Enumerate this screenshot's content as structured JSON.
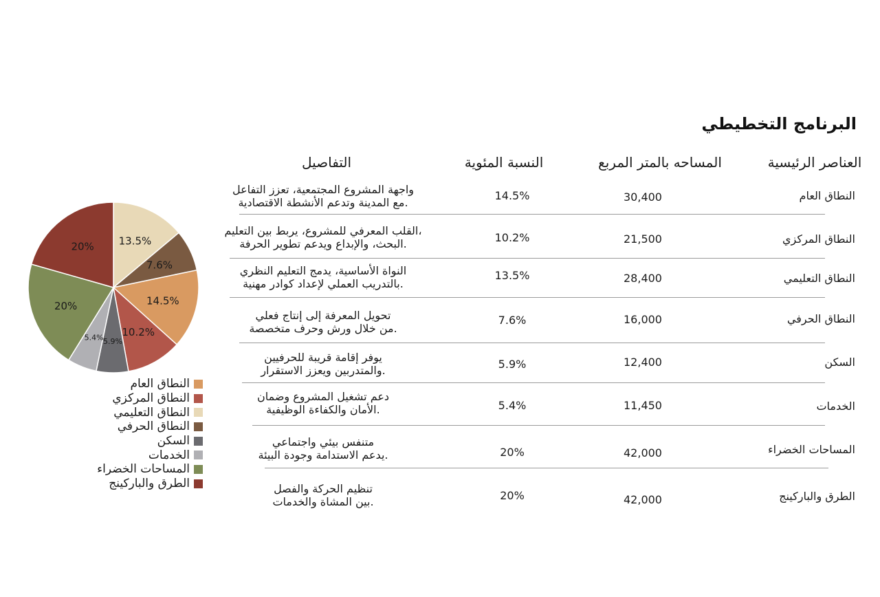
{
  "title": "البرنامج التخطيطي",
  "columns": {
    "elements": "العناصر الرئيسية",
    "area": "المساحه بالمتر المربع",
    "percent": "النسبة المئوية",
    "details": "التفاصيل"
  },
  "rows": [
    {
      "element": "النطاق العام",
      "area": "30,400",
      "percent": "14.5%",
      "detail1": "واجهة المشروع المجتمعية، تعزز التفاعل",
      "detail2": ".مع المدينة وتدعم الأنشطة الاقتصادية"
    },
    {
      "element": "النطاق المركزي",
      "area": "21,500",
      "percent": "10.2%",
      "detail1": "،القلب المعرفي للمشروع، يربط بين التعليم",
      "detail2": ".البحث، والإبداع ويدعم تطوير الحرفة"
    },
    {
      "element": "النطاق التعليمي",
      "area": "28,400",
      "percent": "13.5%",
      "detail1": "النواة الأساسية، يدمج التعليم النظري",
      "detail2": ".بالتدريب العملي لإعداد كوادر مهنية"
    },
    {
      "element": "النطاق الحرفي",
      "area": "16,000",
      "percent": "7.6%",
      "detail1": "تحويل المعرفة إلى إنتاج فعلي",
      "detail2": ".من خلال ورش وحرف متخصصة"
    },
    {
      "element": "السكن",
      "area": "12,400",
      "percent": "5.9%",
      "detail1": "يوفر إقامة قريبة للحرفيين",
      "detail2": ".والمتدربين ويعزز الاستقرار"
    },
    {
      "element": "الخدمات",
      "area": "11,450",
      "percent": "5.4%",
      "detail1": "دعم تشغيل المشروع وضمان",
      "detail2": ".الأمان والكفاءة الوظيفية"
    },
    {
      "element": "المساحات الخضراء",
      "area": "42,000",
      "percent": "20%",
      "detail1": "متنفس بيئي واجتماعي",
      "detail2": ".يدعم الاستدامة وجودة البيئة"
    },
    {
      "element": "الطرق والباركينج",
      "area": "42,000",
      "percent": "20%",
      "detail1": "تنظيم الحركة والفصل",
      "detail2": ".بين المشاة والخدمات"
    }
  ],
  "chart_data": {
    "type": "pie",
    "title": "",
    "legend_position": "bottom",
    "slices": [
      {
        "label": "النطاق التعليمي",
        "value": 13.5,
        "display": "13.5%",
        "color": "#e8d9b7"
      },
      {
        "label": "النطاق الحرفي",
        "value": 7.6,
        "display": "7.6%",
        "color": "#7a5a41"
      },
      {
        "label": "النطاق العام",
        "value": 14.5,
        "display": "14.5%",
        "color": "#d99a61"
      },
      {
        "label": "النطاق المركزي",
        "value": 10.2,
        "display": "10.2%",
        "color": "#b2564a"
      },
      {
        "label": "السكن",
        "value": 5.9,
        "display": "5.9%",
        "color": "#6b6b6f"
      },
      {
        "label": "الخدمات",
        "value": 5.4,
        "display": "5.4%",
        "color": "#b0b0b4"
      },
      {
        "label": "المساحات الخضراء",
        "value": 20,
        "display": "20%",
        "color": "#7e8c56"
      },
      {
        "label": "الطرق والباركينج",
        "value": 20,
        "display": "20%",
        "color": "#8c3a2f"
      }
    ],
    "legend": [
      {
        "label": "النطاق العام",
        "color": "#d99a61"
      },
      {
        "label": "النطاق المركزي",
        "color": "#b2564a"
      },
      {
        "label": "النطاق التعليمي",
        "color": "#e8d9b7"
      },
      {
        "label": "النطاق الحرفي",
        "color": "#7a5a41"
      },
      {
        "label": "السكن",
        "color": "#6b6b6f"
      },
      {
        "label": "الخدمات",
        "color": "#b0b0b4"
      },
      {
        "label": "المساحات الخضراء",
        "color": "#7e8c56"
      },
      {
        "label": "الطرق والباركينج",
        "color": "#8c3a2f"
      }
    ]
  }
}
